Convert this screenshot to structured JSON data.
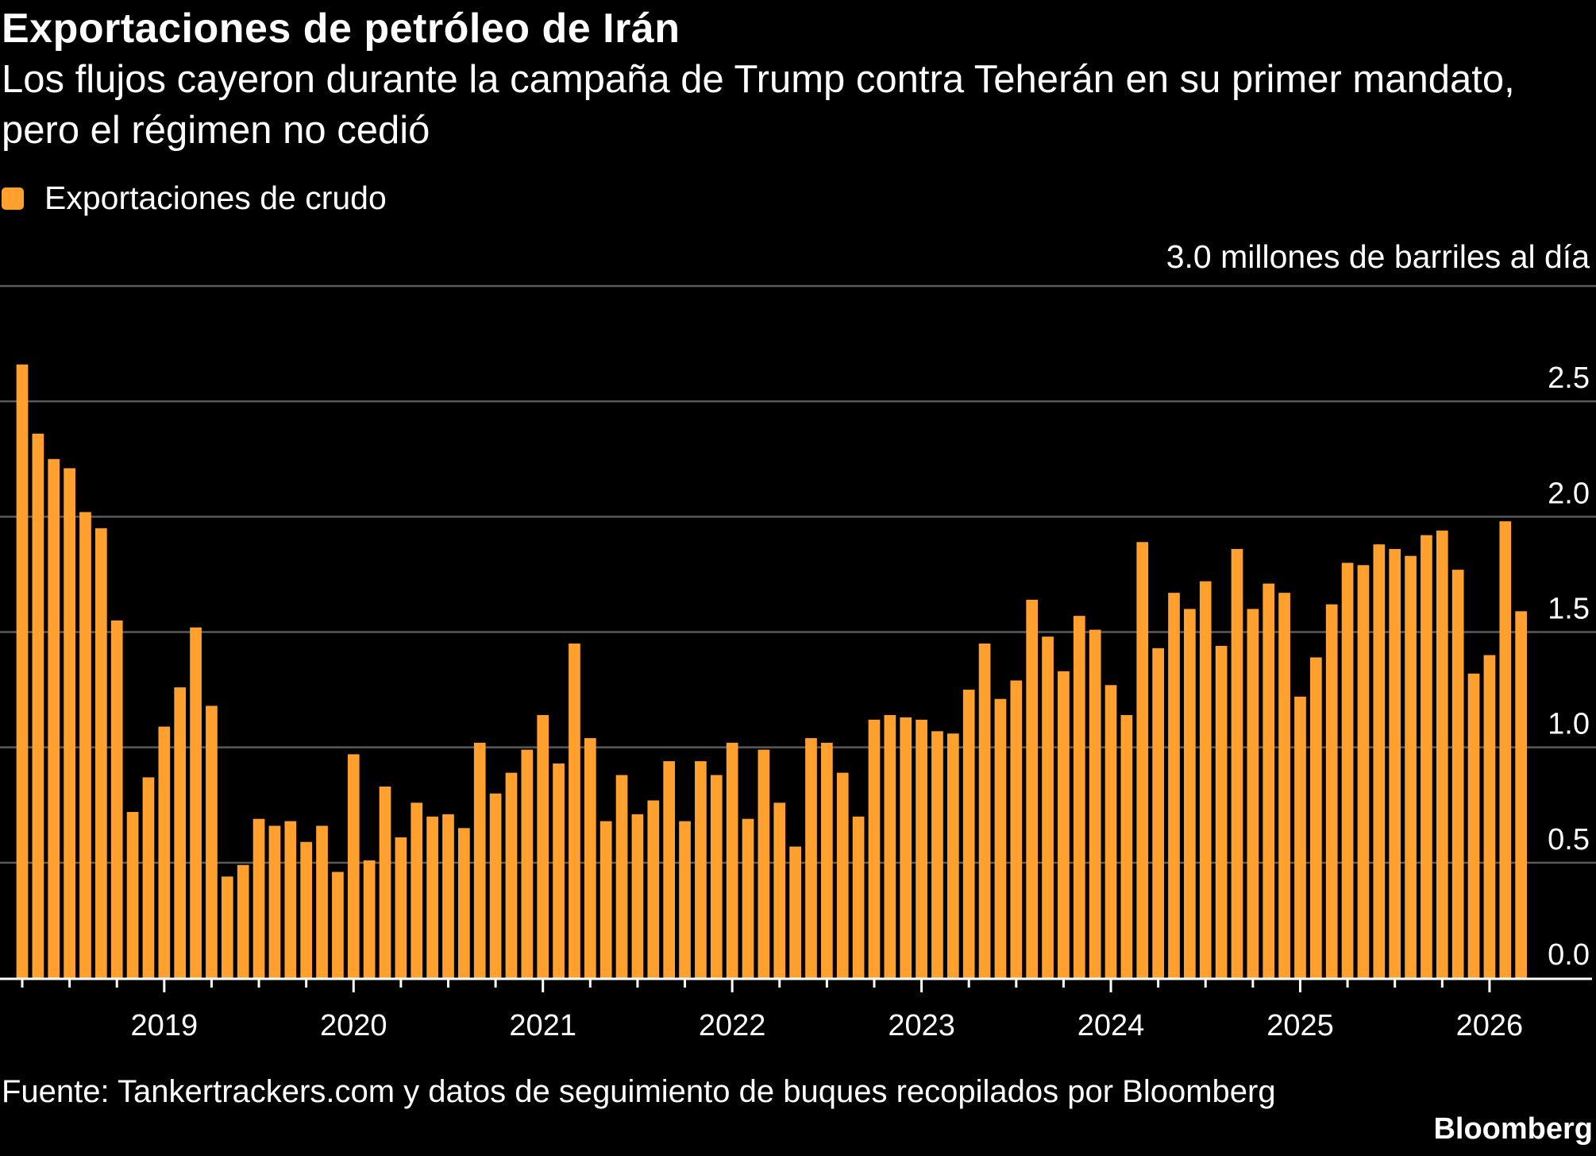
{
  "title": "Exportaciones de petróleo de Irán",
  "subtitle": "Los flujos cayeron durante la campaña de Trump contra Teherán en su primer mandato, pero el régimen no cedió",
  "legend": [
    {
      "label": "Exportaciones de crudo",
      "color": "#ffa02f"
    }
  ],
  "unit_label": "3.0 millones de barriles al día",
  "source": "Fuente: Tankertrackers.com y datos de seguimiento de buques recopilados por Bloomberg",
  "brand": "Bloomberg",
  "chart_data": {
    "type": "bar",
    "title": "Exportaciones de petróleo de Irán",
    "ylabel": "millones de barriles al día",
    "ylim": [
      0,
      3.0
    ],
    "yticks": [
      "0.0",
      "0.5",
      "1.0",
      "1.5",
      "2.0",
      "2.5",
      "3.0"
    ],
    "grid": true,
    "legend_position": "top-left",
    "bar_color": "#ffa02f",
    "x_start": "2018-04",
    "xtick_labels": [
      "2019",
      "2020",
      "2021",
      "2022",
      "2023",
      "2024",
      "2025",
      "2026"
    ],
    "series": [
      {
        "name": "Exportaciones de crudo",
        "values": [
          2.66,
          2.36,
          2.25,
          2.21,
          2.02,
          1.95,
          1.55,
          0.72,
          0.87,
          1.09,
          1.26,
          1.52,
          1.18,
          0.44,
          0.49,
          0.69,
          0.66,
          0.68,
          0.59,
          0.66,
          0.46,
          0.97,
          0.51,
          0.83,
          0.61,
          0.76,
          0.7,
          0.71,
          0.65,
          1.02,
          0.8,
          0.89,
          0.99,
          1.14,
          0.93,
          1.45,
          1.04,
          0.68,
          0.88,
          0.71,
          0.77,
          0.94,
          0.68,
          0.94,
          0.88,
          1.02,
          0.69,
          0.99,
          0.76,
          0.57,
          1.04,
          1.02,
          0.89,
          0.7,
          1.12,
          1.14,
          1.13,
          1.12,
          1.07,
          1.06,
          1.25,
          1.45,
          1.21,
          1.29,
          1.64,
          1.48,
          1.33,
          1.57,
          1.51,
          1.27,
          1.14,
          1.89,
          1.43,
          1.67,
          1.6,
          1.72,
          1.44,
          1.86,
          1.6,
          1.71,
          1.67,
          1.22,
          1.39,
          1.62,
          1.8,
          1.79,
          1.88,
          1.86,
          1.83,
          1.92,
          1.94,
          1.77,
          1.32,
          1.4,
          1.98,
          1.59
        ]
      }
    ]
  }
}
